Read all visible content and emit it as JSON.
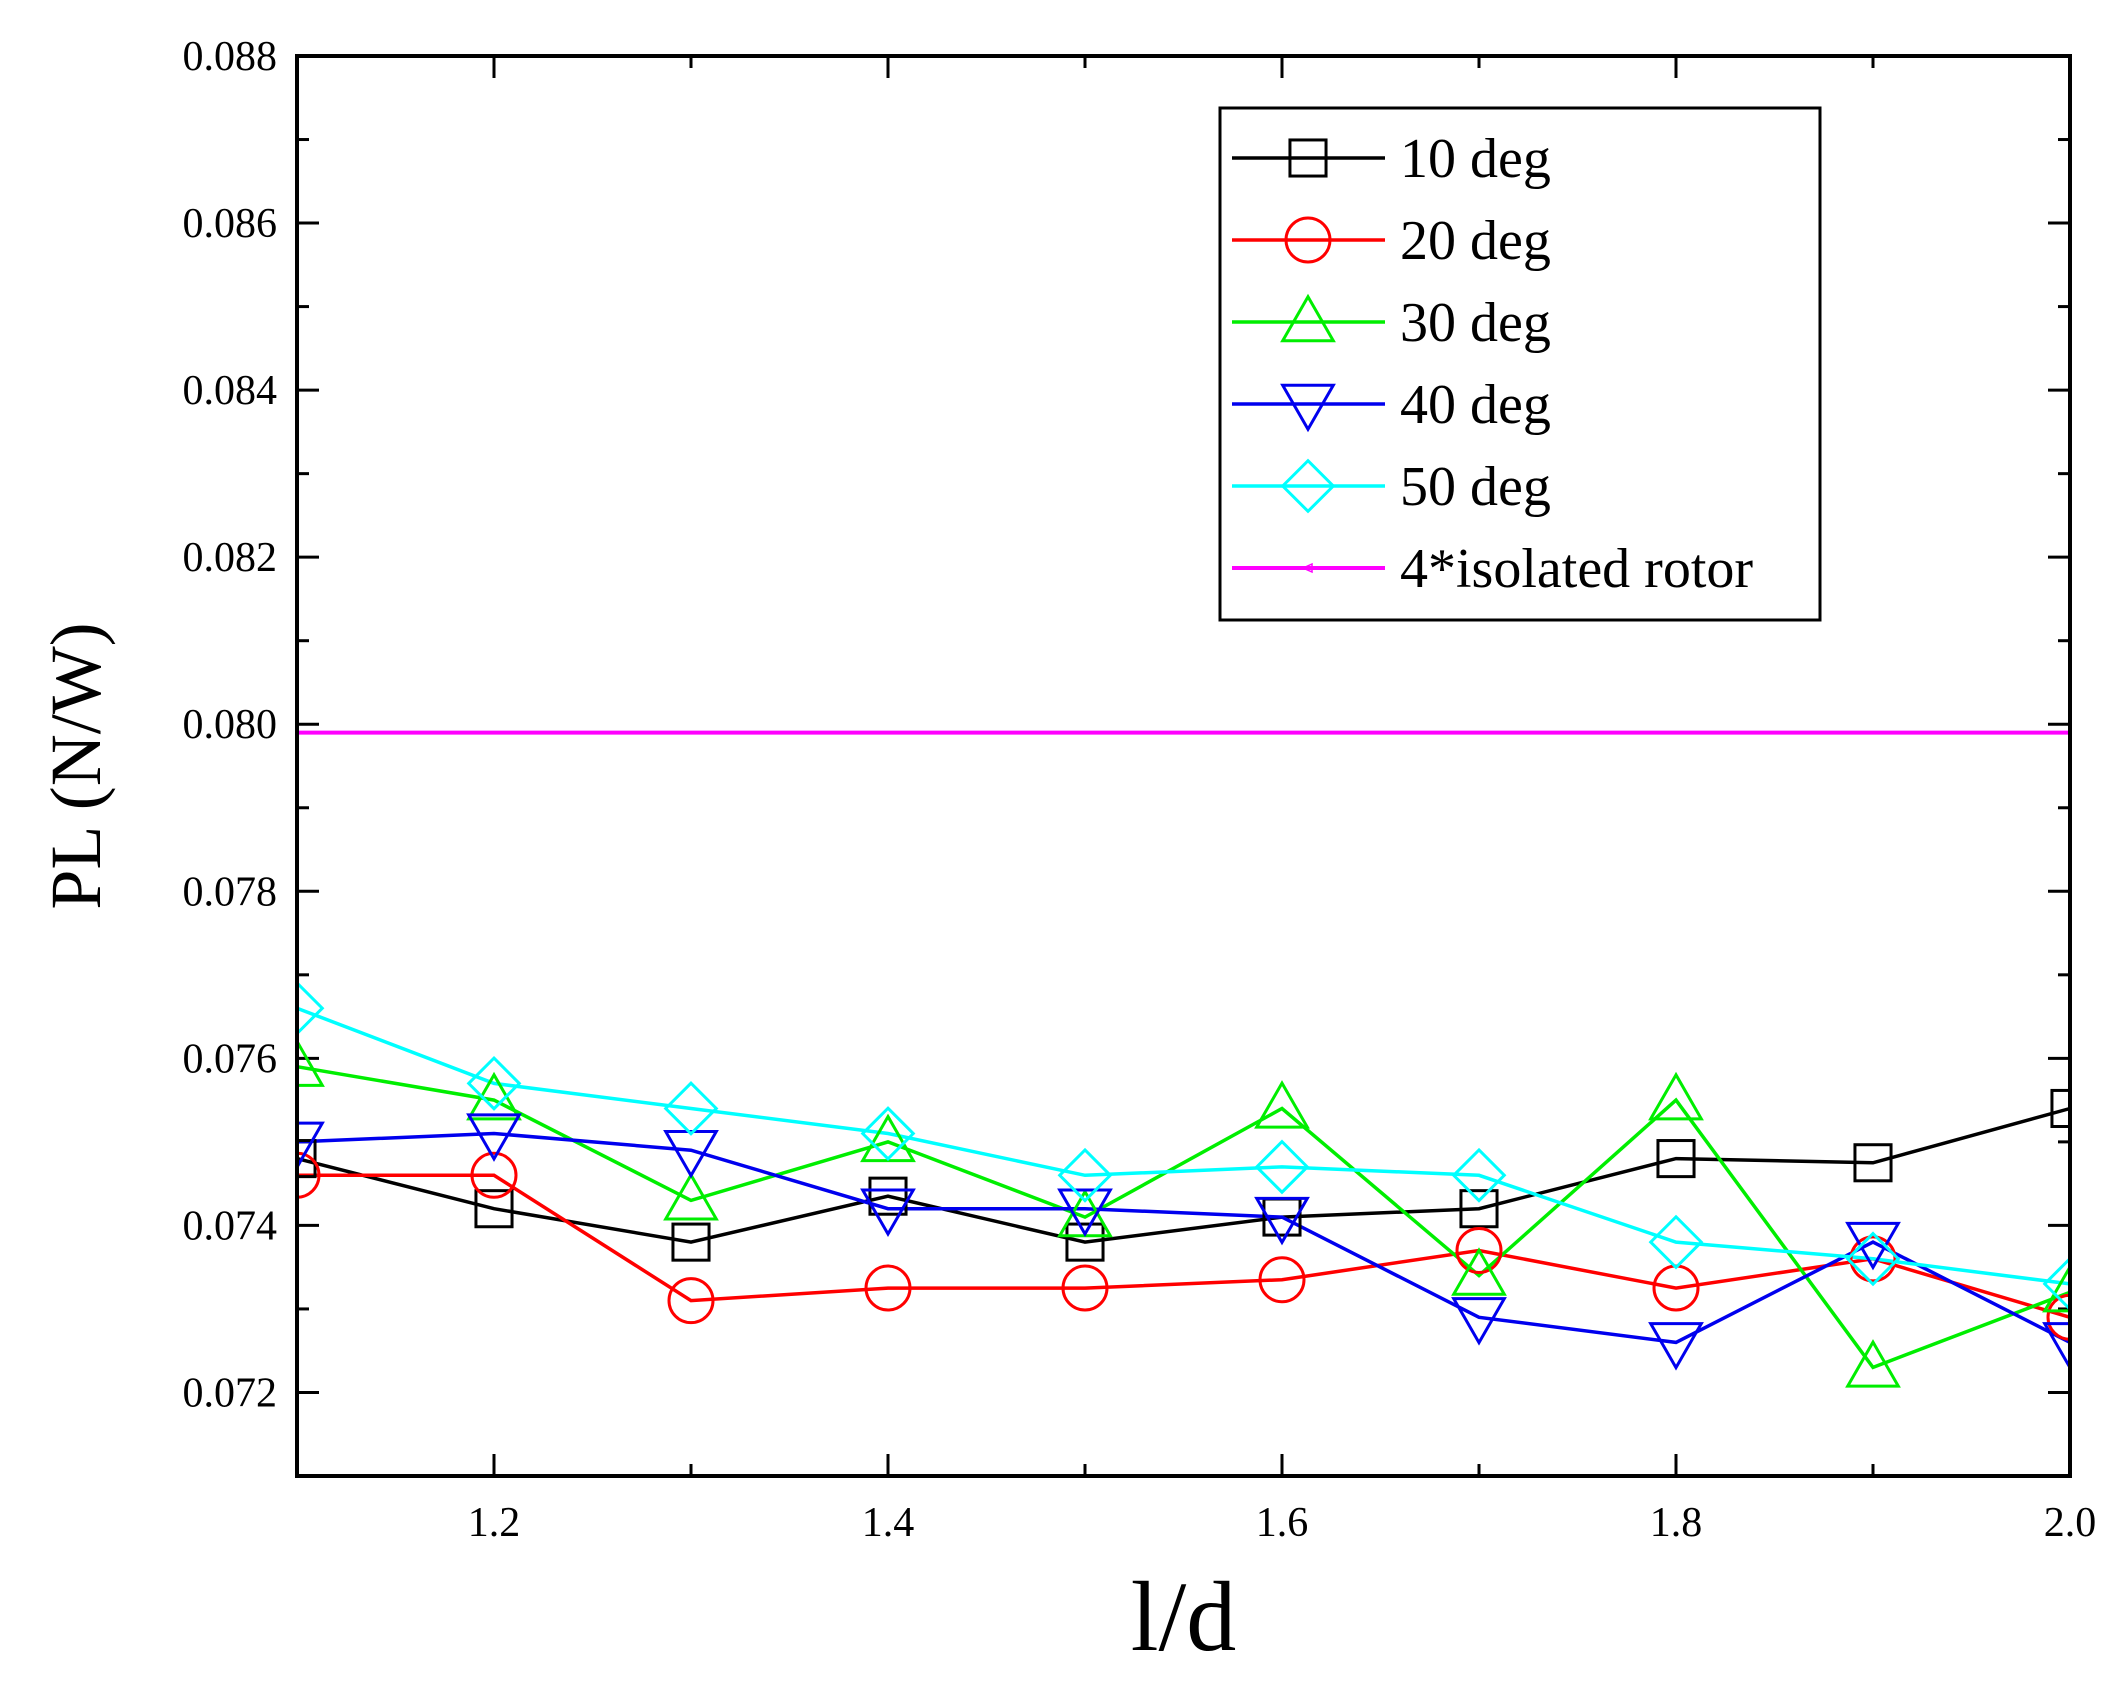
{
  "chart_data": {
    "type": "line",
    "title": "",
    "xlabel": "l/d",
    "ylabel": "PL (N/W)",
    "xlim": [
      1.1,
      2.0
    ],
    "ylim": [
      0.071,
      0.088
    ],
    "xticks": [
      1.2,
      1.4,
      1.6,
      1.8,
      2.0
    ],
    "xtick_labels": [
      "1.2",
      "1.4",
      "1.6",
      "1.8",
      "2.0"
    ],
    "yticks": [
      0.072,
      0.074,
      0.076,
      0.078,
      0.08,
      0.082,
      0.084,
      0.086,
      0.088
    ],
    "ytick_labels": [
      "0.072",
      "0.074",
      "0.076",
      "0.078",
      "0.080",
      "0.082",
      "0.084",
      "0.086",
      "0.088"
    ],
    "x": [
      1.1,
      1.2,
      1.3,
      1.4,
      1.5,
      1.6,
      1.7,
      1.8,
      1.9,
      2.0
    ],
    "legend_position": "top-right",
    "grid": false,
    "series": [
      {
        "name": "10 deg",
        "color": "#000000",
        "marker": "square",
        "values": [
          0.0748,
          0.0742,
          0.0738,
          0.07435,
          0.0738,
          0.0741,
          0.0742,
          0.0748,
          0.07475,
          0.0754
        ]
      },
      {
        "name": "20 deg",
        "color": "#ff0000",
        "marker": "circle",
        "values": [
          0.0746,
          0.0746,
          0.0731,
          0.07325,
          0.07325,
          0.07335,
          0.0737,
          0.07325,
          0.0736,
          0.0729
        ]
      },
      {
        "name": "30 deg",
        "color": "#00ee00",
        "marker": "triangle-up",
        "values": [
          0.0759,
          0.0755,
          0.0743,
          0.075,
          0.0741,
          0.0754,
          0.0734,
          0.0755,
          0.0723,
          0.0732
        ]
      },
      {
        "name": "40 deg",
        "color": "#0000ee",
        "marker": "triangle-down",
        "values": [
          0.075,
          0.0751,
          0.0749,
          0.0742,
          0.0742,
          0.0741,
          0.0729,
          0.0726,
          0.0738,
          0.0726
        ]
      },
      {
        "name": "50 deg",
        "color": "#00ffff",
        "marker": "diamond",
        "values": [
          0.0766,
          0.0757,
          0.0754,
          0.0751,
          0.0746,
          0.0747,
          0.0746,
          0.0738,
          0.0736,
          0.0733
        ]
      },
      {
        "name": "4*isolated rotor",
        "color": "#ff00ff",
        "marker": "small-triangle-left",
        "constant": 0.0799
      }
    ]
  }
}
